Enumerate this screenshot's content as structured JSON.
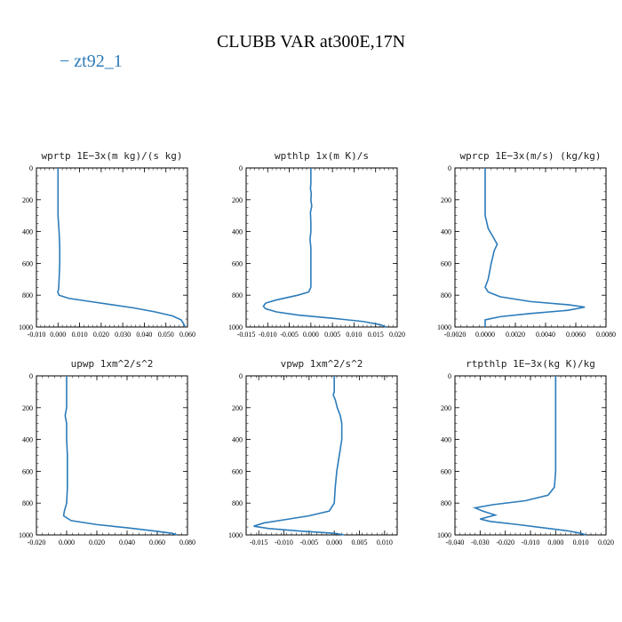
{
  "title": "CLUBB VAR at300E,17N",
  "legend": {
    "label": "− zt92_1",
    "color": "#2b7bba"
  },
  "chart_data": [
    {
      "type": "line",
      "title": "wprtp  1E−3x(m kg)/(s kg)",
      "xlim": [
        -0.01,
        0.06
      ],
      "xticks": [
        "-0.010",
        "0.000",
        "0.010",
        "0.020",
        "0.030",
        "0.040",
        "0.050",
        "0.060"
      ],
      "ylim": [
        0,
        1000
      ],
      "yticks": [
        "0",
        "200",
        "400",
        "600",
        "800",
        "1000"
      ],
      "series": [
        {
          "color": "#2b7bba",
          "points": [
            [
              0.0,
              0
            ],
            [
              0.0,
              100
            ],
            [
              0.0,
              200
            ],
            [
              0.0,
              300
            ],
            [
              0.0005,
              400
            ],
            [
              0.0008,
              500
            ],
            [
              0.0008,
              600
            ],
            [
              0.0005,
              700
            ],
            [
              0.0003,
              760
            ],
            [
              -0.0001,
              780
            ],
            [
              0.0005,
              800
            ],
            [
              0.005,
              820
            ],
            [
              0.015,
              840
            ],
            [
              0.025,
              860
            ],
            [
              0.035,
              880
            ],
            [
              0.045,
              905
            ],
            [
              0.053,
              930
            ],
            [
              0.057,
              955
            ],
            [
              0.058,
              975
            ],
            [
              0.059,
              1000
            ]
          ]
        }
      ]
    },
    {
      "type": "line",
      "title": "wpthlp  1x(m K)/s",
      "xlim": [
        -0.015,
        0.02
      ],
      "xticks": [
        "-0.015",
        "-0.010",
        "-0.005",
        "0.000",
        "0.005",
        "0.010",
        "0.015",
        "0.020"
      ],
      "ylim": [
        0,
        1000
      ],
      "yticks": [
        "0",
        "200",
        "400",
        "600",
        "800",
        "1000"
      ],
      "series": [
        {
          "color": "#2b7bba",
          "points": [
            [
              0.0,
              0
            ],
            [
              0.0,
              100
            ],
            [
              -0.0001,
              130
            ],
            [
              0.0001,
              160
            ],
            [
              0.0,
              200
            ],
            [
              0.0002,
              240
            ],
            [
              -0.0001,
              280
            ],
            [
              0.0,
              350
            ],
            [
              0.0,
              400
            ],
            [
              -0.0002,
              450
            ],
            [
              0.0,
              500
            ],
            [
              0.0,
              600
            ],
            [
              0.0,
              700
            ],
            [
              0.0,
              750
            ],
            [
              -0.0005,
              780
            ],
            [
              -0.003,
              800
            ],
            [
              -0.008,
              830
            ],
            [
              -0.0105,
              850
            ],
            [
              -0.011,
              870
            ],
            [
              -0.0105,
              885
            ],
            [
              -0.008,
              905
            ],
            [
              -0.003,
              925
            ],
            [
              0.005,
              945
            ],
            [
              0.012,
              965
            ],
            [
              0.016,
              985
            ],
            [
              0.0175,
              1000
            ]
          ]
        }
      ]
    },
    {
      "type": "line",
      "title": "wprcp  1E−3x(m/s) (kg/kg)",
      "xlim": [
        -0.002,
        0.008
      ],
      "xticks": [
        "-0.0020",
        "0.0000",
        "0.0020",
        "0.0040",
        "0.0060",
        "0.0080"
      ],
      "ylim": [
        0,
        1000
      ],
      "yticks": [
        "0",
        "200",
        "400",
        "600",
        "800",
        "1000"
      ],
      "series": [
        {
          "color": "#2b7bba",
          "points": [
            [
              0.0,
              0
            ],
            [
              0.0,
              100
            ],
            [
              0.0,
              200
            ],
            [
              0.0,
              300
            ],
            [
              0.0002,
              380
            ],
            [
              0.0005,
              430
            ],
            [
              0.0008,
              480
            ],
            [
              0.0006,
              520
            ],
            [
              0.0004,
              600
            ],
            [
              0.0002,
              700
            ],
            [
              0.0,
              750
            ],
            [
              0.0002,
              780
            ],
            [
              0.001,
              810
            ],
            [
              0.003,
              840
            ],
            [
              0.0055,
              860
            ],
            [
              0.0066,
              875
            ],
            [
              0.0055,
              895
            ],
            [
              0.003,
              915
            ],
            [
              0.001,
              935
            ],
            [
              0.0,
              955
            ],
            [
              0.0,
              1000
            ]
          ]
        }
      ]
    },
    {
      "type": "line",
      "title": "upwp  1xm^2/s^2",
      "xlim": [
        -0.02,
        0.08
      ],
      "xticks": [
        "-0.020",
        "0.000",
        "0.020",
        "0.040",
        "0.060",
        "0.080"
      ],
      "ylim": [
        0,
        1000
      ],
      "yticks": [
        "0",
        "200",
        "400",
        "600",
        "800",
        "1000"
      ],
      "series": [
        {
          "color": "#2b7bba",
          "points": [
            [
              0.0,
              0
            ],
            [
              0.0,
              100
            ],
            [
              0.0,
              200
            ],
            [
              -0.001,
              250
            ],
            [
              0.0,
              300
            ],
            [
              0.0,
              400
            ],
            [
              0.0005,
              500
            ],
            [
              0.0005,
              600
            ],
            [
              0.0005,
              700
            ],
            [
              0.0,
              800
            ],
            [
              -0.0015,
              850
            ],
            [
              -0.002,
              880
            ],
            [
              0.003,
              910
            ],
            [
              0.02,
              935
            ],
            [
              0.04,
              955
            ],
            [
              0.058,
              975
            ],
            [
              0.07,
              990
            ],
            [
              0.073,
              1000
            ]
          ]
        }
      ]
    },
    {
      "type": "line",
      "title": "vpwp  1xm^2/s^2",
      "xlim": [
        -0.0175,
        0.0125
      ],
      "xticks": [
        "-0.015",
        "-0.010",
        "-0.005",
        "0.000",
        "0.005",
        "0.010"
      ],
      "ylim": [
        0,
        1000
      ],
      "yticks": [
        "0",
        "200",
        "400",
        "600",
        "800",
        "1000"
      ],
      "series": [
        {
          "color": "#2b7bba",
          "points": [
            [
              0.0,
              0
            ],
            [
              0.0,
              100
            ],
            [
              -0.0002,
              120
            ],
            [
              0.0002,
              150
            ],
            [
              0.0006,
              200
            ],
            [
              0.0012,
              250
            ],
            [
              0.0015,
              300
            ],
            [
              0.0015,
              400
            ],
            [
              0.001,
              500
            ],
            [
              0.0005,
              600
            ],
            [
              0.0002,
              700
            ],
            [
              0.0,
              800
            ],
            [
              -0.001,
              850
            ],
            [
              -0.005,
              880
            ],
            [
              -0.01,
              905
            ],
            [
              -0.014,
              925
            ],
            [
              -0.016,
              945
            ],
            [
              -0.013,
              960
            ],
            [
              -0.007,
              975
            ],
            [
              0.0,
              990
            ],
            [
              0.002,
              1000
            ]
          ]
        }
      ]
    },
    {
      "type": "line",
      "title": "rtpthlp  1E−3x(kg K)/kg",
      "xlim": [
        -0.04,
        0.02
      ],
      "xticks": [
        "-0.040",
        "-0.030",
        "-0.020",
        "-0.010",
        "0.000",
        "0.010",
        "0.020"
      ],
      "ylim": [
        0,
        1000
      ],
      "yticks": [
        "0",
        "200",
        "400",
        "600",
        "800",
        "1000"
      ],
      "series": [
        {
          "color": "#2b7bba",
          "points": [
            [
              0.0,
              0
            ],
            [
              0.0,
              100
            ],
            [
              0.0,
              200
            ],
            [
              0.0,
              300
            ],
            [
              0.0,
              400
            ],
            [
              0.0,
              500
            ],
            [
              0.0,
              600
            ],
            [
              -0.0005,
              700
            ],
            [
              -0.003,
              750
            ],
            [
              -0.012,
              785
            ],
            [
              -0.025,
              810
            ],
            [
              -0.032,
              830
            ],
            [
              -0.029,
              850
            ],
            [
              -0.024,
              875
            ],
            [
              -0.03,
              900
            ],
            [
              -0.026,
              915
            ],
            [
              -0.015,
              935
            ],
            [
              -0.005,
              955
            ],
            [
              0.005,
              975
            ],
            [
              0.01,
              990
            ],
            [
              0.012,
              1000
            ]
          ]
        }
      ]
    }
  ]
}
